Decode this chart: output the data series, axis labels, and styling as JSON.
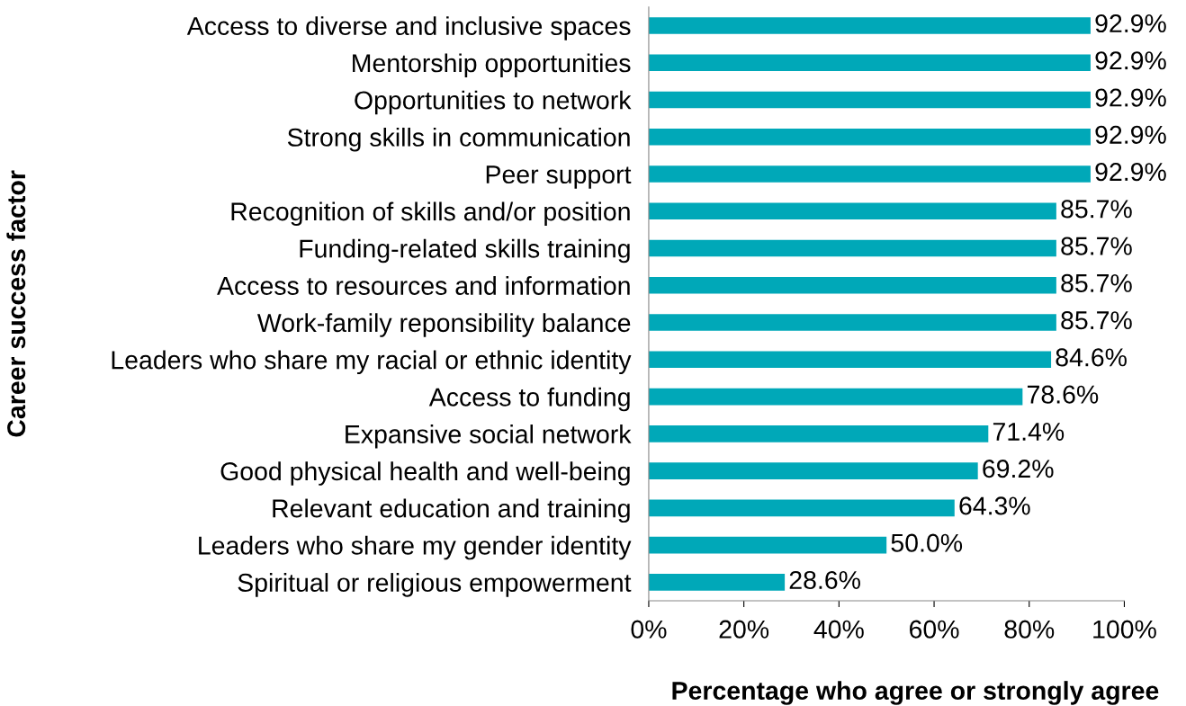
{
  "chart_data": {
    "type": "bar",
    "orientation": "horizontal",
    "xlabel": "Percentage who agree or strongly agree",
    "ylabel": "Career success factor",
    "categories": [
      "Access to diverse and inclusive spaces",
      "Mentorship opportunities",
      "Opportunities to network",
      "Strong skills in communication",
      "Peer support",
      "Recognition of skills and/or position",
      "Funding-related skills training",
      "Access to resources and information",
      "Work-family reponsibility balance",
      "Leaders who share my racial or ethnic identity",
      "Access to funding",
      "Expansive social network",
      "Good physical health and well-being",
      "Relevant education and training",
      "Leaders who share my gender identity",
      "Spiritual or religious empowerment"
    ],
    "values": [
      92.9,
      92.9,
      92.9,
      92.9,
      92.9,
      85.7,
      85.7,
      85.7,
      85.7,
      84.6,
      78.6,
      71.4,
      69.2,
      64.3,
      50.0,
      28.6
    ],
    "value_labels": [
      "92.9%",
      "92.9%",
      "92.9%",
      "92.9%",
      "92.9%",
      "85.7%",
      "85.7%",
      "85.7%",
      "85.7%",
      "84.6%",
      "78.6%",
      "71.4%",
      "69.2%",
      "64.3%",
      "50.0%",
      "28.6%"
    ],
    "color": "#00a8b8",
    "xlim": [
      0,
      100
    ],
    "xticks": [
      {
        "value": 0,
        "label": "0%"
      },
      {
        "value": 20,
        "label": "20%"
      },
      {
        "value": 40,
        "label": "40%"
      },
      {
        "value": 60,
        "label": "60%"
      },
      {
        "value": 80,
        "label": "80%"
      },
      {
        "value": 100,
        "label": "100%"
      }
    ],
    "grid": false,
    "legend": false
  }
}
